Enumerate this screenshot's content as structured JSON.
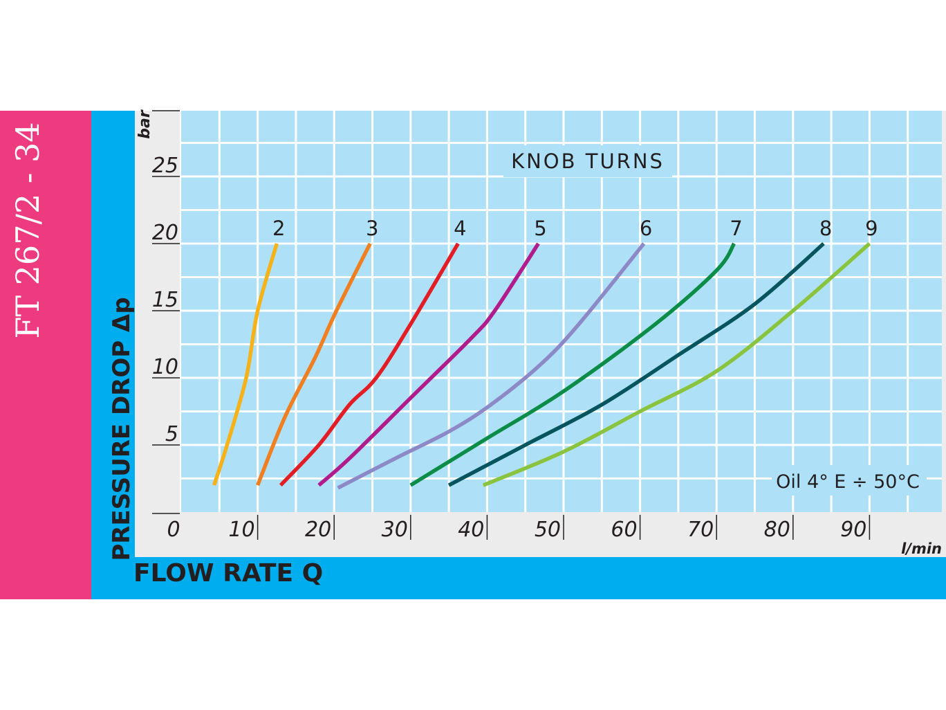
{
  "header": {
    "code": "FT 267/2 - 34"
  },
  "colors": {
    "pink_band": "#ee3a7e",
    "blue_band": "#00adef",
    "plot_bg": "#aee1f8",
    "grid": "#ffffff"
  },
  "chart_data": {
    "type": "line",
    "title": "KNOB TURNS",
    "xlabel": "FLOW RATE Q",
    "ylabel": "PRESSURE DROP Δp",
    "x_unit": "l/min",
    "y_unit": "bar",
    "xlim": [
      0,
      100
    ],
    "ylim": [
      0,
      30
    ],
    "x_ticks": [
      0,
      10,
      20,
      30,
      40,
      50,
      60,
      70,
      80,
      90
    ],
    "y_ticks": [
      5,
      10,
      15,
      20,
      25
    ],
    "grid": true,
    "annotation": "Oil 4° E ÷ 50°C",
    "series": [
      {
        "name": "2",
        "color": "#f5b21a",
        "points": [
          [
            4.3,
            2
          ],
          [
            6,
            5
          ],
          [
            8.5,
            10
          ],
          [
            10,
            15
          ],
          [
            12.5,
            20
          ]
        ]
      },
      {
        "name": "3",
        "color": "#f07f22",
        "points": [
          [
            10,
            2
          ],
          [
            13.5,
            7
          ],
          [
            17.5,
            11.5
          ],
          [
            20.3,
            15
          ],
          [
            24.7,
            20
          ]
        ]
      },
      {
        "name": "4",
        "color": "#e31d25",
        "points": [
          [
            13,
            2
          ],
          [
            18,
            5
          ],
          [
            22,
            8
          ],
          [
            25.5,
            10
          ],
          [
            30,
            14
          ],
          [
            36.2,
            20
          ]
        ]
      },
      {
        "name": "5",
        "color": "#b01c8c",
        "points": [
          [
            18,
            2
          ],
          [
            22,
            4
          ],
          [
            30,
            8.5
          ],
          [
            38,
            13
          ],
          [
            41,
            15
          ],
          [
            46.7,
            20
          ]
        ]
      },
      {
        "name": "6",
        "color": "#8d89c6",
        "points": [
          [
            20.5,
            1.8
          ],
          [
            28,
            4
          ],
          [
            35,
            6
          ],
          [
            40.5,
            8
          ],
          [
            47,
            11
          ],
          [
            52,
            14
          ],
          [
            60.5,
            20
          ]
        ]
      },
      {
        "name": "7",
        "color": "#0b8d47",
        "points": [
          [
            30,
            2
          ],
          [
            40,
            5.5
          ],
          [
            50,
            9
          ],
          [
            62,
            14
          ],
          [
            70,
            18
          ],
          [
            72.3,
            20
          ]
        ]
      },
      {
        "name": "8",
        "color": "#06545e",
        "points": [
          [
            35,
            2
          ],
          [
            45,
            5
          ],
          [
            55,
            8
          ],
          [
            65,
            11.7
          ],
          [
            75,
            15.5
          ],
          [
            84,
            20
          ]
        ]
      },
      {
        "name": "9",
        "color": "#8ac43f",
        "points": [
          [
            39.5,
            2
          ],
          [
            50,
            4.5
          ],
          [
            60,
            7.5
          ],
          [
            70,
            10.5
          ],
          [
            80,
            15
          ],
          [
            90,
            20
          ]
        ]
      }
    ]
  }
}
